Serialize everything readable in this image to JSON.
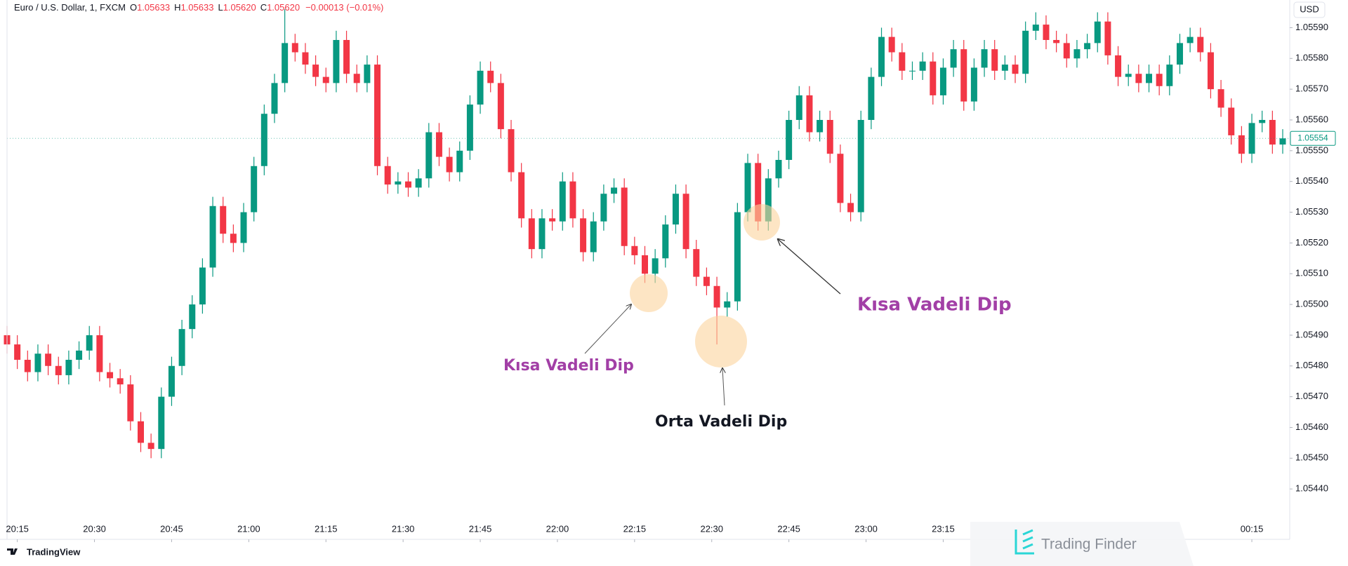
{
  "header": {
    "symbol": "Euro / U.S. Dollar, 1, FXCM",
    "o_label": "O",
    "o_value": "1.05633",
    "h_label": "H",
    "h_value": "1.05633",
    "l_label": "L",
    "l_value": "1.05620",
    "c_label": "C",
    "c_value": "1.05620",
    "change": "−0.00013 (−0.01%)",
    "currency": "USD",
    "brand": "TradingView",
    "watermark": "Trading Finder"
  },
  "chart_data": {
    "type": "candlestick",
    "up_color": "#089981",
    "down_color": "#f23645",
    "grid": false,
    "ylim": [
      1.0543,
      1.05599
    ],
    "yticks": [
      {
        "value": 1.0544,
        "label": "1.05440"
      },
      {
        "value": 1.0545,
        "label": "1.05450"
      },
      {
        "value": 1.0546,
        "label": "1.05460"
      },
      {
        "value": 1.0547,
        "label": "1.05470"
      },
      {
        "value": 1.0548,
        "label": "1.05480"
      },
      {
        "value": 1.0549,
        "label": "1.05490"
      },
      {
        "value": 1.055,
        "label": "1.05500"
      },
      {
        "value": 1.0551,
        "label": "1.05510"
      },
      {
        "value": 1.0552,
        "label": "1.05520"
      },
      {
        "value": 1.0553,
        "label": "1.05530"
      },
      {
        "value": 1.0554,
        "label": "1.05540"
      },
      {
        "value": 1.0555,
        "label": "1.05550"
      },
      {
        "value": 1.0556,
        "label": "1.05560"
      },
      {
        "value": 1.0557,
        "label": "1.05570"
      },
      {
        "value": 1.0558,
        "label": "1.05580"
      },
      {
        "value": 1.0559,
        "label": "1.05590"
      }
    ],
    "xticks": [
      "20:15",
      "20:30",
      "20:45",
      "21:00",
      "21:15",
      "21:30",
      "21:45",
      "22:00",
      "22:15",
      "22:30",
      "22:45",
      "23:00",
      "23:15",
      "00:15"
    ],
    "price_label": 1.05554,
    "annotations": [
      "Kısa Vadeli Dip",
      "Orta Vadeli Dip",
      "Kısa Vadeli Dip"
    ],
    "x": [
      "20:13",
      "20:15",
      "20:17",
      "20:19",
      "20:21",
      "20:23",
      "20:25",
      "20:27",
      "20:29",
      "20:31",
      "20:33",
      "20:35",
      "20:37",
      "20:39",
      "20:41",
      "20:43",
      "20:45",
      "20:47",
      "20:49",
      "20:51",
      "20:53",
      "20:55",
      "20:57",
      "20:59",
      "21:01",
      "21:03",
      "21:05",
      "21:07",
      "21:09",
      "21:11",
      "21:13",
      "21:15",
      "21:17",
      "21:19",
      "21:21",
      "21:23",
      "21:25",
      "21:27",
      "21:29",
      "21:31",
      "21:33",
      "21:35",
      "21:37",
      "21:39",
      "21:41",
      "21:43",
      "21:45",
      "21:47",
      "21:49",
      "21:51",
      "21:53",
      "21:55",
      "21:57",
      "21:59",
      "22:01",
      "22:03",
      "22:05",
      "22:07",
      "22:09",
      "22:11",
      "22:13",
      "22:15",
      "22:17",
      "22:19",
      "22:21",
      "22:23",
      "22:25",
      "22:27",
      "22:29",
      "22:31",
      "22:33",
      "22:35",
      "22:37",
      "22:39",
      "22:41",
      "22:43",
      "22:45",
      "22:47",
      "22:49",
      "22:51",
      "22:53",
      "22:55",
      "22:57",
      "22:59",
      "23:01",
      "23:03",
      "23:05",
      "23:07",
      "23:09",
      "23:11",
      "23:13",
      "23:15",
      "23:17",
      "23:19",
      "23:21",
      "23:23",
      "23:25",
      "23:27",
      "23:29",
      "23:31",
      "23:33",
      "23:35",
      "23:37",
      "23:39",
      "23:41",
      "23:43",
      "23:45",
      "23:47",
      "23:49",
      "23:51",
      "23:53",
      "23:55",
      "23:57",
      "23:59",
      "00:01",
      "00:03",
      "00:05",
      "00:07",
      "00:09",
      "00:11",
      "00:13",
      "00:15",
      "00:17",
      "00:19",
      "00:21"
    ],
    "open": [
      1.0549,
      1.05487,
      1.05482,
      1.05478,
      1.05484,
      1.0548,
      1.05477,
      1.05482,
      1.05485,
      1.0549,
      1.05478,
      1.05476,
      1.05474,
      1.05462,
      1.05455,
      1.05453,
      1.0547,
      1.0548,
      1.05492,
      1.055,
      1.05512,
      1.05532,
      1.05523,
      1.0552,
      1.0553,
      1.05545,
      1.05562,
      1.05572,
      1.05585,
      1.05582,
      1.05578,
      1.05574,
      1.05572,
      1.05586,
      1.05575,
      1.05572,
      1.05578,
      1.05545,
      1.05539,
      1.0554,
      1.05538,
      1.05541,
      1.05556,
      1.05548,
      1.05543,
      1.0555,
      1.05565,
      1.05576,
      1.05572,
      1.05557,
      1.05543,
      1.05528,
      1.05518,
      1.05528,
      1.05527,
      1.0554,
      1.05528,
      1.05517,
      1.05527,
      1.05536,
      1.05538,
      1.05519,
      1.05516,
      1.0551,
      1.05515,
      1.05526,
      1.05536,
      1.05518,
      1.05509,
      1.05506,
      1.05499,
      1.05501,
      1.0553,
      1.05546,
      1.05527,
      1.05541,
      1.05547,
      1.0556,
      1.05568,
      1.05556,
      1.0556,
      1.05549,
      1.05533,
      1.0553,
      1.0556,
      1.05574,
      1.05587,
      1.05582,
      1.05576,
      1.05576,
      1.05579,
      1.05568,
      1.05577,
      1.05583,
      1.05566,
      1.05577,
      1.05583,
      1.05576,
      1.05578,
      1.05575,
      1.05589,
      1.05591,
      1.05586,
      1.05585,
      1.0558,
      1.05583,
      1.05585,
      1.05592,
      1.05581,
      1.05574,
      1.05575,
      1.05572,
      1.05575,
      1.05571,
      1.05578,
      1.05585,
      1.05587,
      1.05582,
      1.0557,
      1.05564,
      1.05555,
      1.05549,
      1.05559,
      1.0556,
      1.05552
    ],
    "high": [
      1.05493,
      1.0549,
      1.05485,
      1.05487,
      1.05487,
      1.05483,
      1.05485,
      1.05488,
      1.05493,
      1.05493,
      1.05481,
      1.05479,
      1.05477,
      1.05465,
      1.05458,
      1.05473,
      1.05483,
      1.05495,
      1.05503,
      1.05515,
      1.05535,
      1.05535,
      1.05526,
      1.05533,
      1.05548,
      1.05565,
      1.05575,
      1.05596,
      1.05588,
      1.05585,
      1.05581,
      1.05577,
      1.05589,
      1.05589,
      1.05578,
      1.05581,
      1.05581,
      1.05548,
      1.05543,
      1.05543,
      1.05544,
      1.05559,
      1.05559,
      1.05551,
      1.05553,
      1.05568,
      1.05579,
      1.05579,
      1.05575,
      1.0556,
      1.05546,
      1.05531,
      1.05531,
      1.05531,
      1.05543,
      1.05543,
      1.05531,
      1.0553,
      1.05539,
      1.05541,
      1.05541,
      1.05522,
      1.05519,
      1.05518,
      1.05529,
      1.05539,
      1.05539,
      1.05521,
      1.05512,
      1.05509,
      1.05504,
      1.05533,
      1.05549,
      1.05549,
      1.05544,
      1.0555,
      1.05563,
      1.05571,
      1.05571,
      1.05563,
      1.05563,
      1.05552,
      1.05536,
      1.05563,
      1.05577,
      1.0559,
      1.0559,
      1.05585,
      1.05579,
      1.05582,
      1.05582,
      1.0558,
      1.05586,
      1.05586,
      1.0558,
      1.05586,
      1.05586,
      1.05581,
      1.05581,
      1.05592,
      1.05595,
      1.05594,
      1.05589,
      1.05588,
      1.05586,
      1.05588,
      1.05595,
      1.05595,
      1.05584,
      1.05578,
      1.05578,
      1.05578,
      1.05578,
      1.05581,
      1.05588,
      1.0559,
      1.0559,
      1.05585,
      1.05573,
      1.05567,
      1.05558,
      1.05562,
      1.05563,
      1.05563,
      1.05557
    ],
    "low": [
      1.05484,
      1.05479,
      1.05475,
      1.05475,
      1.05477,
      1.05474,
      1.05474,
      1.05479,
      1.05482,
      1.05475,
      1.05473,
      1.05471,
      1.05459,
      1.05452,
      1.0545,
      1.0545,
      1.05467,
      1.05477,
      1.05489,
      1.05497,
      1.05509,
      1.0552,
      1.05517,
      1.05517,
      1.05527,
      1.05542,
      1.05559,
      1.05569,
      1.05579,
      1.05575,
      1.05571,
      1.05569,
      1.05569,
      1.05572,
      1.05569,
      1.05569,
      1.05542,
      1.05536,
      1.05536,
      1.05535,
      1.05535,
      1.05538,
      1.05545,
      1.0554,
      1.0554,
      1.05547,
      1.05562,
      1.05569,
      1.05554,
      1.0554,
      1.05525,
      1.05515,
      1.05515,
      1.05524,
      1.05524,
      1.05525,
      1.05514,
      1.05514,
      1.05524,
      1.05533,
      1.05516,
      1.05513,
      1.05507,
      1.05507,
      1.05512,
      1.05523,
      1.05515,
      1.05506,
      1.05503,
      1.05487,
      1.05496,
      1.05498,
      1.05527,
      1.05524,
      1.05524,
      1.05538,
      1.05544,
      1.05557,
      1.05553,
      1.05553,
      1.05546,
      1.0553,
      1.05527,
      1.05527,
      1.05557,
      1.05571,
      1.05579,
      1.05573,
      1.05573,
      1.05573,
      1.05565,
      1.05565,
      1.05574,
      1.05563,
      1.05563,
      1.05574,
      1.05573,
      1.05573,
      1.05572,
      1.05572,
      1.05586,
      1.05583,
      1.05582,
      1.05577,
      1.05577,
      1.0558,
      1.05582,
      1.05578,
      1.05571,
      1.05571,
      1.05569,
      1.05569,
      1.05568,
      1.05568,
      1.05575,
      1.05582,
      1.05579,
      1.05567,
      1.05561,
      1.05552,
      1.05546,
      1.05546,
      1.05556,
      1.05549,
      1.05549
    ],
    "close": [
      1.05487,
      1.05482,
      1.05478,
      1.05484,
      1.0548,
      1.05477,
      1.05482,
      1.05485,
      1.0549,
      1.05478,
      1.05476,
      1.05474,
      1.05462,
      1.05455,
      1.05453,
      1.0547,
      1.0548,
      1.05492,
      1.055,
      1.05512,
      1.05532,
      1.05523,
      1.0552,
      1.0553,
      1.05545,
      1.05562,
      1.05572,
      1.05585,
      1.05582,
      1.05578,
      1.05574,
      1.05572,
      1.05586,
      1.05575,
      1.05572,
      1.05578,
      1.05545,
      1.05539,
      1.0554,
      1.05538,
      1.05541,
      1.05556,
      1.05548,
      1.05543,
      1.0555,
      1.05565,
      1.05576,
      1.05572,
      1.05557,
      1.05543,
      1.05528,
      1.05518,
      1.05528,
      1.05527,
      1.0554,
      1.05528,
      1.05517,
      1.05527,
      1.05536,
      1.05538,
      1.05519,
      1.05516,
      1.0551,
      1.05515,
      1.05526,
      1.05536,
      1.05518,
      1.05509,
      1.05506,
      1.05499,
      1.05501,
      1.0553,
      1.05546,
      1.05527,
      1.05541,
      1.05547,
      1.0556,
      1.05568,
      1.05556,
      1.0556,
      1.05549,
      1.05533,
      1.0553,
      1.0556,
      1.05574,
      1.05587,
      1.05582,
      1.05576,
      1.05576,
      1.05579,
      1.05568,
      1.05577,
      1.05583,
      1.05566,
      1.05577,
      1.05583,
      1.05576,
      1.05578,
      1.05575,
      1.05589,
      1.05591,
      1.05586,
      1.05585,
      1.0558,
      1.05583,
      1.05585,
      1.05592,
      1.05581,
      1.05574,
      1.05575,
      1.05572,
      1.05575,
      1.05571,
      1.05578,
      1.05585,
      1.05587,
      1.05582,
      1.0557,
      1.05564,
      1.05555,
      1.05549,
      1.05559,
      1.0556,
      1.05552,
      1.05554
    ]
  }
}
